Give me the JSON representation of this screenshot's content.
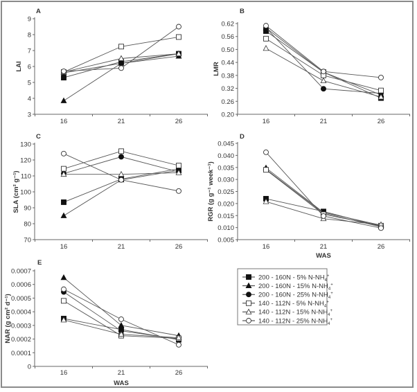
{
  "chart_data": [
    {
      "id": "A",
      "type": "line",
      "panel_label": "A",
      "ylabel": "LAI",
      "xlabel": "",
      "x": [
        16,
        21,
        26
      ],
      "ylim": [
        3,
        9
      ],
      "yticks": [
        3,
        4,
        5,
        6,
        7,
        8,
        9
      ],
      "ytick_labels": [
        "3",
        "4",
        "5",
        "6",
        "7",
        "8",
        "9"
      ],
      "series": [
        {
          "name": "200 - 160N - 5% N-NH4+",
          "values": [
            5.3,
            6.3,
            6.8
          ]
        },
        {
          "name": "200 - 160N - 15% N-NH4+",
          "values": [
            3.85,
            6.2,
            6.65
          ]
        },
        {
          "name": "200 - 160N - 25% N-NH4+",
          "values": [
            5.6,
            6.2,
            6.8
          ]
        },
        {
          "name": "140 - 112N - 5% N-NH4+",
          "values": [
            5.65,
            7.25,
            7.85
          ]
        },
        {
          "name": "140 - 112N - 15% N-NH4+",
          "values": [
            5.65,
            6.5,
            6.8
          ]
        },
        {
          "name": "140 - 112N - 25% N-NH4+",
          "values": [
            5.7,
            5.9,
            8.5
          ]
        }
      ]
    },
    {
      "id": "B",
      "type": "line",
      "panel_label": "B",
      "ylabel": "LMR",
      "xlabel": "",
      "x": [
        16,
        21,
        26
      ],
      "ylim": [
        0.2,
        0.62
      ],
      "yticks": [
        0.2,
        0.26,
        0.32,
        0.38,
        0.44,
        0.5,
        0.56,
        0.62
      ],
      "ytick_labels": [
        "0.20",
        "0.26",
        "0.32",
        "0.38",
        "0.44",
        "0.50",
        "0.56",
        "0.62"
      ],
      "series": [
        {
          "name": "200 - 160N - 5% N-NH4+",
          "values": [
            0.585,
            0.395,
            0.275
          ]
        },
        {
          "name": "200 - 160N - 15% N-NH4+",
          "values": [
            0.6,
            0.395,
            0.29
          ]
        },
        {
          "name": "200 - 160N - 25% N-NH4+",
          "values": [
            0.6,
            0.318,
            0.297
          ]
        },
        {
          "name": "140 - 112N - 5% N-NH4+",
          "values": [
            0.55,
            0.38,
            0.31
          ]
        },
        {
          "name": "140 - 112N - 15% N-NH4+",
          "values": [
            0.505,
            0.355,
            0.28
          ]
        },
        {
          "name": "140 - 112N - 25% N-NH4+",
          "values": [
            0.61,
            0.398,
            0.37
          ]
        }
      ]
    },
    {
      "id": "C",
      "type": "line",
      "panel_label": "C",
      "ylabel": "SLA (cm² g⁻¹)",
      "xlabel": "",
      "x": [
        16,
        21,
        26
      ],
      "ylim": [
        70,
        130
      ],
      "yticks": [
        70,
        80,
        90,
        100,
        110,
        120,
        130
      ],
      "ytick_labels": [
        "70",
        "80",
        "90",
        "100",
        "110",
        "120",
        "130"
      ],
      "series": [
        {
          "name": "200 - 160N - 5% N-NH4+",
          "values": [
            93.5,
            108,
            114.5
          ]
        },
        {
          "name": "200 - 160N - 15% N-NH4+",
          "values": [
            85,
            107.5,
            113.5
          ]
        },
        {
          "name": "200 - 160N - 25% N-NH4+",
          "values": [
            111.5,
            122,
            112.5
          ]
        },
        {
          "name": "140 - 112N - 5% N-NH4+",
          "values": [
            114.5,
            125.5,
            116.5
          ]
        },
        {
          "name": "140 - 112N - 15% N-NH4+",
          "values": [
            111,
            111,
            112
          ]
        },
        {
          "name": "140 - 112N - 25% N-NH4+",
          "values": [
            124,
            107.5,
            100.5
          ]
        }
      ]
    },
    {
      "id": "D",
      "type": "line",
      "panel_label": "D",
      "ylabel": "RGR (g g⁻¹ week⁻¹)",
      "xlabel": "WAS",
      "x": [
        16,
        21,
        26
      ],
      "ylim": [
        0.005,
        0.045
      ],
      "yticks": [
        0.005,
        0.01,
        0.015,
        0.02,
        0.025,
        0.03,
        0.035,
        0.04,
        0.045
      ],
      "ytick_labels": [
        "0.005",
        "0.010",
        "0.015",
        "0.020",
        "0.025",
        "0.030",
        "0.035",
        "0.040",
        "0.045"
      ],
      "series": [
        {
          "name": "200 - 160N - 5% N-NH4+",
          "values": [
            0.022,
            0.0167,
            0.0105
          ]
        },
        {
          "name": "200 - 160N - 15% N-NH4+",
          "values": [
            0.0348,
            0.0163,
            0.011
          ]
        },
        {
          "name": "200 - 160N - 25% N-NH4+",
          "values": [
            0.0342,
            0.016,
            0.0103
          ]
        },
        {
          "name": "140 - 112N - 5% N-NH4+",
          "values": [
            0.034,
            0.0155,
            0.0108
          ]
        },
        {
          "name": "140 - 112N - 15% N-NH4+",
          "values": [
            0.0208,
            0.0137,
            0.0112
          ]
        },
        {
          "name": "140 - 112N - 25% N-NH4+",
          "values": [
            0.0413,
            0.0148,
            0.0098
          ]
        }
      ]
    },
    {
      "id": "E",
      "type": "line",
      "panel_label": "E",
      "ylabel": "NAR (g cm² d⁻¹)",
      "xlabel": "WAS",
      "x": [
        16,
        21,
        26
      ],
      "ylim": [
        0,
        0.0007
      ],
      "yticks": [
        0,
        0.0001,
        0.0002,
        0.0003,
        0.0004,
        0.0005,
        0.0006,
        0.0007
      ],
      "ytick_labels": [
        "0",
        "0.0001",
        "0.0002",
        "0.0003",
        "0.0004",
        "0.0005",
        "0.0006",
        "0.0007"
      ],
      "series": [
        {
          "name": "200 - 160N - 5% N-NH4+",
          "values": [
            0.00035,
            0.00027,
            0.000195
          ]
        },
        {
          "name": "200 - 160N - 15% N-NH4+",
          "values": [
            0.00065,
            0.0003,
            0.000225
          ]
        },
        {
          "name": "200 - 160N - 25% N-NH4+",
          "values": [
            0.000545,
            0.00026,
            0.0002
          ]
        },
        {
          "name": "140 - 112N - 5% N-NH4+",
          "values": [
            0.00048,
            0.000225,
            0.000205
          ]
        },
        {
          "name": "140 - 112N - 15% N-NH4+",
          "values": [
            0.00034,
            0.000235,
            0.00021
          ]
        },
        {
          "name": "140 - 112N - 25% N-NH4+",
          "values": [
            0.000565,
            0.000345,
            0.000158
          ]
        }
      ]
    }
  ],
  "legend": {
    "placement": "bottom-right",
    "entries": [
      {
        "label": "200 - 160N - 5% N-NH",
        "sub": "4",
        "sup": "+",
        "marker": "square",
        "filled": true
      },
      {
        "label": "200 - 160N - 15% N-NH",
        "sub": "4",
        "sup": "+",
        "marker": "triangle",
        "filled": true
      },
      {
        "label": "200 - 160N - 25% N-NH",
        "sub": "4",
        "sup": "+",
        "marker": "circle",
        "filled": true
      },
      {
        "label": "140 - 112N - 5% N-NH",
        "sub": "4",
        "sup": "+",
        "marker": "square",
        "filled": false
      },
      {
        "label": "140 - 112N - 15% N-NH",
        "sub": "4",
        "sup": "+",
        "marker": "triangle",
        "filled": false
      },
      {
        "label": "140 - 112N - 25% N-NH",
        "sub": "4",
        "sup": "+",
        "marker": "circle",
        "filled": false
      }
    ]
  },
  "colors": {
    "line": "#555555",
    "marker_fill": "#111111",
    "axis": "#666666",
    "frame": "#8a8a8a"
  }
}
